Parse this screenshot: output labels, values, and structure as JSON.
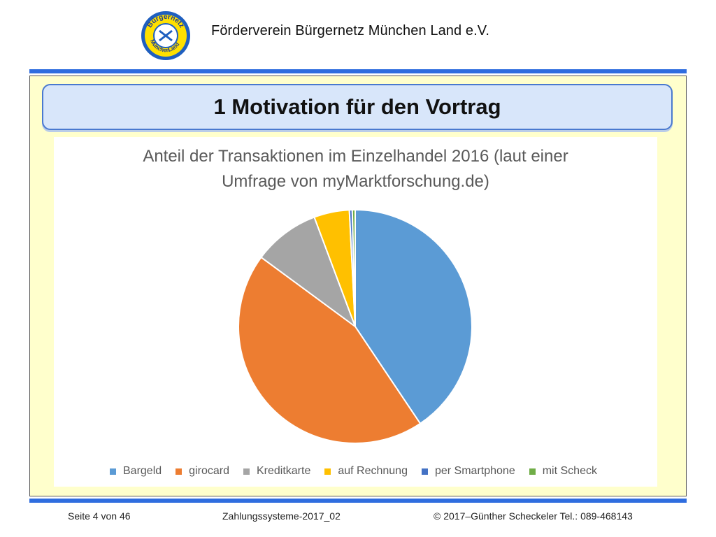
{
  "header": {
    "organization": "Förderverein Bürgernetz München Land e.V.",
    "logo": {
      "icon": "buergernetz-logo",
      "top_text": "Bürgernetz",
      "bottom_left_text": "München",
      "bottom_right_text": "Land",
      "colors": {
        "ring": "#1f5fbf",
        "center": "#ffe000"
      }
    }
  },
  "slide": {
    "title": "1 Motivation für den Vortrag"
  },
  "chart_data": {
    "type": "pie",
    "title": "Anteil der Transaktionen im Einzelhandel 2016 (laut einer Umfrage von myMarktforschung.de)",
    "title_lines": [
      "Anteil der Transaktionen im Einzelhandel 2016 (laut einer",
      "Umfrage von myMarktforschung.de)"
    ],
    "start_angle_deg": 0,
    "direction": "clockwise",
    "legend_position": "bottom",
    "labels": [
      "Bargeld",
      "girocard",
      "Kreditkarte",
      "auf Rechnung",
      "per Smartphone",
      "mit Scheck"
    ],
    "values": [
      40.6,
      44.5,
      9.2,
      4.9,
      0.4,
      0.4
    ],
    "colors": [
      "#5b9bd5",
      "#ed7d31",
      "#a5a5a5",
      "#ffc000",
      "#4472c4",
      "#70ad47"
    ]
  },
  "footer": {
    "page": "Seite 4 von 46",
    "document": "Zahlungssysteme-2017_02",
    "copyright": "© 2017–Günther Scheckeler Tel.: 089-468143"
  }
}
